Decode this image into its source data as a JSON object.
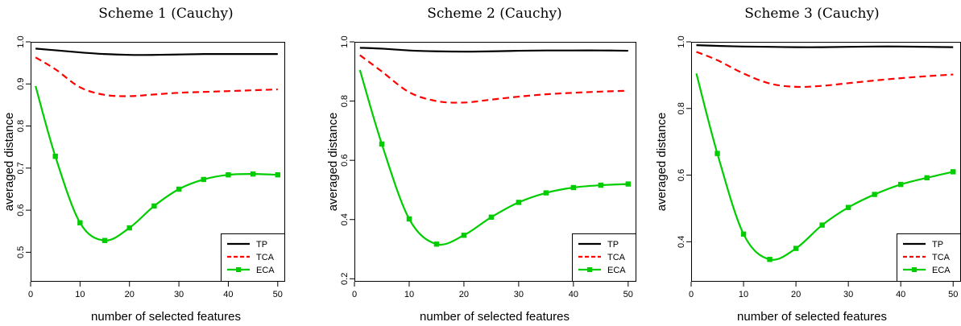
{
  "colors": {
    "TP": "#000000",
    "TCA": "#ff0000",
    "ECA": "#00cd00"
  },
  "chart_data": [
    {
      "type": "line",
      "title": "Scheme 1 (Cauchy)",
      "xlabel": "number of selected features",
      "ylabel": "averaged distance",
      "xlim": [
        1,
        50
      ],
      "ylim": [
        0.43,
        1.0
      ],
      "xticks": [
        0,
        10,
        20,
        30,
        40,
        50
      ],
      "yticks": [
        0.5,
        0.6,
        0.7,
        0.8,
        0.9,
        1.0
      ],
      "ytick_labels": [
        "0.5",
        "0.6",
        "0.7",
        "0.8",
        "0.9",
        "1.0"
      ],
      "legend": "bottom-right",
      "series": [
        {
          "name": "TP",
          "style": "solid",
          "x": [
            1,
            5,
            10,
            15,
            20,
            25,
            30,
            35,
            40,
            45,
            50
          ],
          "y": [
            0.984,
            0.98,
            0.975,
            0.971,
            0.969,
            0.969,
            0.97,
            0.971,
            0.971,
            0.971,
            0.971
          ]
        },
        {
          "name": "TCA",
          "style": "dashed",
          "x": [
            1,
            5,
            10,
            15,
            20,
            25,
            30,
            35,
            40,
            45,
            50
          ],
          "y": [
            0.963,
            0.935,
            0.892,
            0.874,
            0.871,
            0.875,
            0.879,
            0.881,
            0.883,
            0.885,
            0.887
          ]
        },
        {
          "name": "ECA",
          "style": "solid-square",
          "x": [
            1,
            5,
            10,
            15,
            20,
            25,
            30,
            35,
            40,
            45,
            50
          ],
          "y": [
            0.895,
            0.728,
            0.57,
            0.528,
            0.558,
            0.61,
            0.65,
            0.673,
            0.684,
            0.686,
            0.684
          ]
        }
      ]
    },
    {
      "type": "line",
      "title": "Scheme 2 (Cauchy)",
      "xlabel": "number of selected features",
      "ylabel": "averaged distance",
      "xlim": [
        1,
        50
      ],
      "ylim": [
        0.19,
        1.0
      ],
      "xticks": [
        0,
        10,
        20,
        30,
        40,
        50
      ],
      "yticks": [
        0.2,
        0.4,
        0.6,
        0.8,
        1.0
      ],
      "ytick_labels": [
        "0.2",
        "0.4",
        "0.6",
        "0.8",
        "1.0"
      ],
      "legend": "bottom-right",
      "series": [
        {
          "name": "TP",
          "style": "solid",
          "x": [
            1,
            5,
            10,
            15,
            20,
            25,
            30,
            35,
            40,
            45,
            50
          ],
          "y": [
            0.98,
            0.977,
            0.971,
            0.968,
            0.967,
            0.968,
            0.97,
            0.971,
            0.971,
            0.971,
            0.97
          ]
        },
        {
          "name": "TCA",
          "style": "dashed",
          "x": [
            1,
            5,
            10,
            15,
            20,
            25,
            30,
            35,
            40,
            45,
            50
          ],
          "y": [
            0.955,
            0.9,
            0.83,
            0.8,
            0.795,
            0.805,
            0.815,
            0.823,
            0.828,
            0.832,
            0.835
          ]
        },
        {
          "name": "ECA",
          "style": "solid-square",
          "x": [
            1,
            5,
            10,
            15,
            20,
            25,
            30,
            35,
            40,
            45,
            50
          ],
          "y": [
            0.905,
            0.655,
            0.402,
            0.317,
            0.347,
            0.408,
            0.458,
            0.49,
            0.508,
            0.516,
            0.52
          ]
        }
      ]
    },
    {
      "type": "line",
      "title": "Scheme 3 (Cauchy)",
      "xlabel": "number of selected features",
      "ylabel": "averaged distance",
      "xlim": [
        1,
        50
      ],
      "ylim": [
        0.28,
        1.0
      ],
      "xticks": [
        0,
        10,
        20,
        30,
        40,
        50
      ],
      "yticks": [
        0.4,
        0.6,
        0.8,
        1.0
      ],
      "ytick_labels": [
        "0.4",
        "0.6",
        "0.8",
        "1.0"
      ],
      "legend": "bottom-right",
      "series": [
        {
          "name": "TP",
          "style": "solid",
          "x": [
            1,
            5,
            10,
            15,
            20,
            25,
            30,
            35,
            40,
            45,
            50
          ],
          "y": [
            0.99,
            0.988,
            0.986,
            0.985,
            0.984,
            0.984,
            0.985,
            0.986,
            0.986,
            0.985,
            0.984
          ]
        },
        {
          "name": "TCA",
          "style": "dashed",
          "x": [
            1,
            5,
            10,
            15,
            20,
            25,
            30,
            35,
            40,
            45,
            50
          ],
          "y": [
            0.97,
            0.945,
            0.905,
            0.875,
            0.865,
            0.868,
            0.876,
            0.884,
            0.891,
            0.897,
            0.902
          ]
        },
        {
          "name": "ECA",
          "style": "solid-square",
          "x": [
            1,
            5,
            10,
            15,
            20,
            25,
            30,
            35,
            40,
            45,
            50
          ],
          "y": [
            0.905,
            0.665,
            0.423,
            0.347,
            0.38,
            0.45,
            0.503,
            0.542,
            0.572,
            0.592,
            0.61
          ]
        }
      ]
    }
  ]
}
